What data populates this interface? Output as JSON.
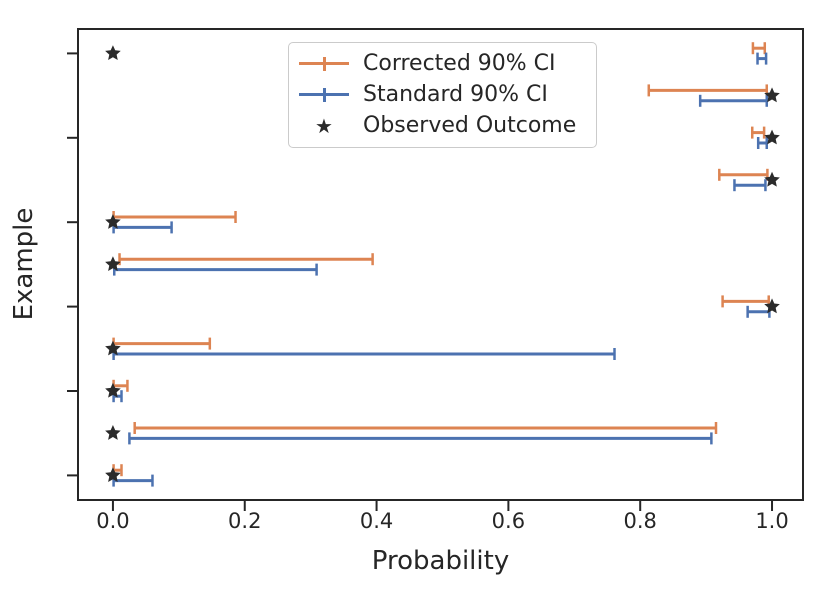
{
  "chart_data": {
    "type": "errorbar",
    "xlabel": "Probability",
    "ylabel": "Example",
    "grid": false,
    "legend_position": "upper center, inside axes",
    "xlim": [
      -0.053,
      1.047
    ],
    "x_ticks": [
      {
        "value": 0.0,
        "label": "0.0"
      },
      {
        "value": 0.2,
        "label": "0.2"
      },
      {
        "value": 0.4,
        "label": "0.4"
      },
      {
        "value": 0.6,
        "label": "0.6"
      },
      {
        "value": 0.8,
        "label": "0.8"
      },
      {
        "value": 1.0,
        "label": "1.0"
      }
    ],
    "y_tick_rows": [
      0,
      2,
      4,
      6,
      8,
      10
    ],
    "colors": {
      "corrected": "#dd8452",
      "standard": "#4c72b0",
      "observed": "#2b2b2b",
      "spine": "#262626",
      "text": "#262626",
      "legend_border": "#cbcbcb"
    },
    "legend": [
      {
        "label": "Corrected 90% CI",
        "series": "corrected"
      },
      {
        "label": "Standard 90% CI",
        "series": "standard"
      },
      {
        "label": "Observed Outcome",
        "series": "observed",
        "glyph": "★"
      }
    ],
    "rows": [
      {
        "corrected": [
          0.971,
          0.989
        ],
        "standard": [
          0.978,
          0.991
        ],
        "observed": 0.0
      },
      {
        "corrected": [
          0.813,
          0.992
        ],
        "standard": [
          0.891,
          0.992
        ],
        "observed": 1.0
      },
      {
        "corrected": [
          0.97,
          0.988
        ],
        "standard": [
          0.979,
          0.992
        ],
        "observed": 1.0
      },
      {
        "corrected": [
          0.92,
          0.993
        ],
        "standard": [
          0.943,
          0.99
        ],
        "observed": 1.0
      },
      {
        "corrected": [
          0.001,
          0.186
        ],
        "standard": [
          0.001,
          0.089
        ],
        "observed": 0.0
      },
      {
        "corrected": [
          0.01,
          0.394
        ],
        "standard": [
          0.002,
          0.309
        ],
        "observed": 0.0
      },
      {
        "corrected": [
          0.925,
          0.995
        ],
        "standard": [
          0.963,
          0.996
        ],
        "observed": 1.0
      },
      {
        "corrected": [
          0.001,
          0.147
        ],
        "standard": [
          0.001,
          0.761
        ],
        "observed": 0.0
      },
      {
        "corrected": [
          0.001,
          0.022
        ],
        "standard": [
          0.001,
          0.013
        ],
        "observed": 0.0
      },
      {
        "corrected": [
          0.033,
          0.915
        ],
        "standard": [
          0.025,
          0.908
        ],
        "observed": 0.0
      },
      {
        "corrected": [
          0.001,
          0.013
        ],
        "standard": [
          0.001,
          0.06
        ],
        "observed": 0.0
      }
    ]
  }
}
